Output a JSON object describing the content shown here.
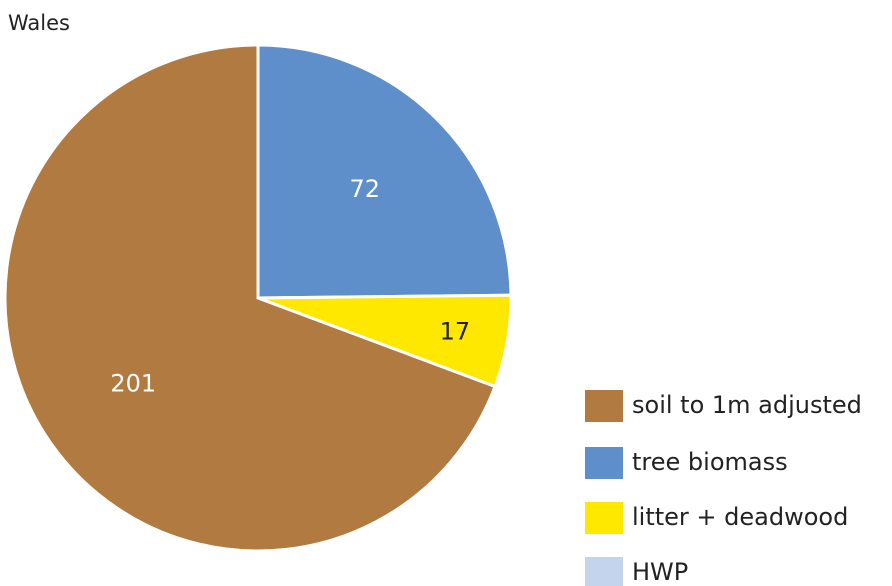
{
  "chart_data": {
    "type": "pie",
    "title": "Wales",
    "categories": [
      "soil to 1m adjusted",
      "tree biomass",
      "litter + deadwood",
      "HWP"
    ],
    "values": [
      201,
      72,
      17,
      0
    ],
    "colors": [
      "#b07a41",
      "#5e8fcb",
      "#ffe800",
      "#c4d4ec"
    ]
  }
}
